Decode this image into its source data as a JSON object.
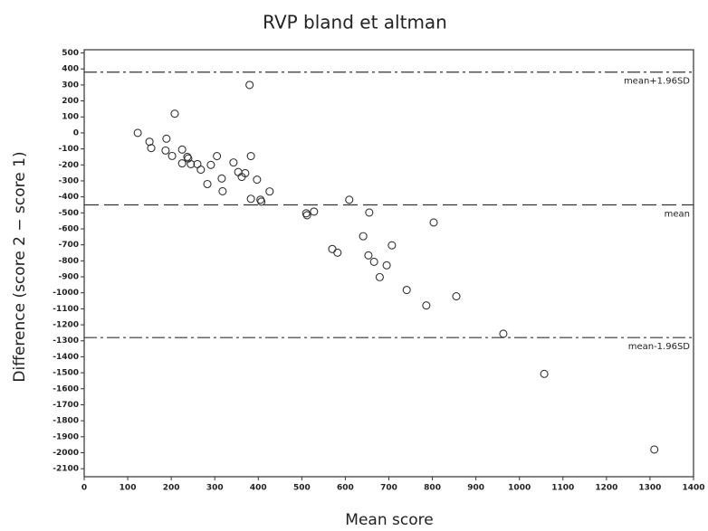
{
  "chart_data": {
    "type": "scatter",
    "title": "RVP bland et altman",
    "x_label": "Mean score",
    "y_label": "Difference (score 2 − score 1)",
    "color": "#333333",
    "x": [
      123,
      150,
      154,
      189,
      208,
      187,
      202,
      225,
      237,
      239,
      225,
      245,
      260,
      268,
      283,
      291,
      305,
      316,
      318,
      343,
      354,
      370,
      362,
      380,
      383,
      397,
      383,
      405,
      407,
      426,
      510,
      512,
      528,
      609,
      655,
      570,
      582,
      641,
      653,
      666,
      679,
      695,
      707,
      741,
      803,
      786,
      855,
      963,
      1057,
      1310
    ],
    "values": [
      0,
      -55,
      -95,
      -36,
      120,
      -110,
      -144,
      -104,
      -150,
      -160,
      -190,
      -195,
      -195,
      -230,
      -320,
      -200,
      -145,
      -285,
      -365,
      -185,
      -245,
      -252,
      -275,
      300,
      -145,
      -292,
      -412,
      -418,
      -430,
      -366,
      -503,
      -515,
      -492,
      -418,
      -498,
      -726,
      -749,
      -646,
      -766,
      -806,
      -902,
      -828,
      -703,
      -982,
      -560,
      -1079,
      -1022,
      -1256,
      -1507,
      -1980
    ],
    "xlim": [
      0,
      1400
    ],
    "xticks": [
      0,
      100,
      200,
      300,
      400,
      500,
      600,
      700,
      800,
      900,
      1000,
      1100,
      1200,
      1300,
      1400
    ],
    "ylim": [
      -2150,
      520
    ],
    "yticks": [
      500,
      400,
      300,
      200,
      100,
      0,
      -100,
      -200,
      -300,
      -400,
      -500,
      -600,
      -700,
      -800,
      -900,
      -1000,
      -1100,
      -1200,
      -1300,
      -1400,
      -1500,
      -1600,
      -1700,
      -1800,
      -1900,
      -2000,
      -2100
    ],
    "reference_lines": [
      {
        "label": "mean+1.96SD",
        "value": 380,
        "style": "dashdot"
      },
      {
        "label": "mean",
        "value": -450,
        "style": "dash"
      },
      {
        "label": "mean-1.96SD",
        "value": -1280,
        "style": "dashdot"
      }
    ]
  }
}
